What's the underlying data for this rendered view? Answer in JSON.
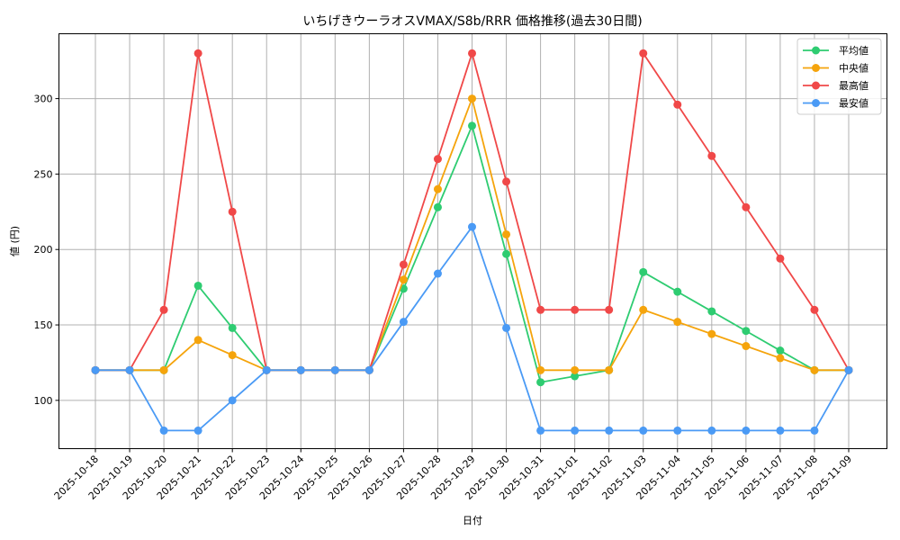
{
  "chart_data": {
    "type": "line",
    "title": "いちげきウーラオスVMAX/S8b/RRR 価格推移(過去30日間)",
    "xlabel": "日付",
    "ylabel": "値 (円)",
    "ylim": [
      68,
      343
    ],
    "yticks": [
      100,
      150,
      200,
      250,
      300
    ],
    "grid": true,
    "legend_position": "upper right",
    "categories": [
      "2025-10-18",
      "2025-10-19",
      "2025-10-20",
      "2025-10-21",
      "2025-10-22",
      "2025-10-23",
      "2025-10-24",
      "2025-10-25",
      "2025-10-26",
      "2025-10-27",
      "2025-10-28",
      "2025-10-29",
      "2025-10-30",
      "2025-10-31",
      "2025-11-01",
      "2025-11-02",
      "2025-11-03",
      "2025-11-04",
      "2025-11-05",
      "2025-11-06",
      "2025-11-07",
      "2025-11-08",
      "2025-11-09"
    ],
    "series": [
      {
        "name": "平均値",
        "color": "#2ecc71",
        "values": [
          120,
          120,
          120,
          176,
          148,
          120,
          120,
          120,
          120,
          174,
          228,
          282,
          197,
          112,
          116,
          120,
          185,
          172,
          159,
          146,
          133,
          120,
          120
        ]
      },
      {
        "name": "中央値",
        "color": "#f5a40c",
        "values": [
          120,
          120,
          120,
          140,
          130,
          120,
          120,
          120,
          120,
          180,
          240,
          300,
          210,
          120,
          120,
          120,
          160,
          152,
          144,
          136,
          128,
          120,
          120
        ]
      },
      {
        "name": "最高値",
        "color": "#f04848",
        "values": [
          120,
          120,
          160,
          330,
          225,
          120,
          120,
          120,
          120,
          190,
          260,
          330,
          245,
          160,
          160,
          160,
          330,
          296,
          262,
          228,
          194,
          160,
          120
        ]
      },
      {
        "name": "最安値",
        "color": "#4a9af5",
        "values": [
          120,
          120,
          80,
          80,
          100,
          120,
          120,
          120,
          120,
          152,
          184,
          215,
          148,
          80,
          80,
          80,
          80,
          80,
          80,
          80,
          80,
          80,
          120
        ]
      }
    ]
  }
}
